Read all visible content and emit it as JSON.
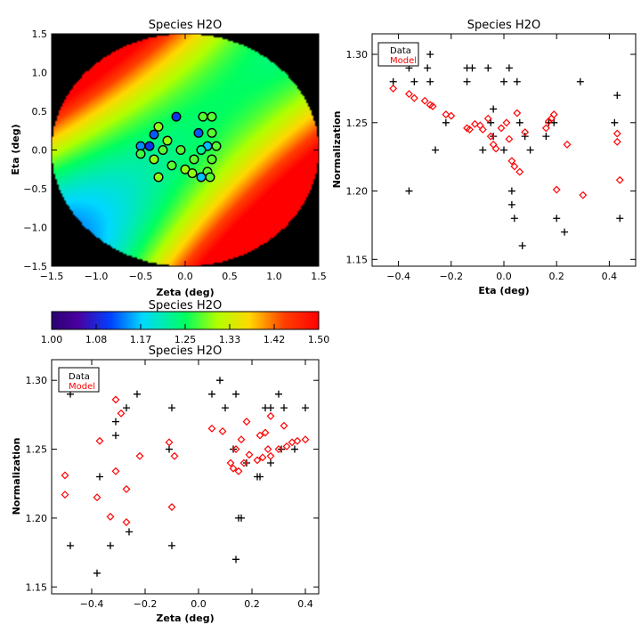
{
  "chart_data": [
    {
      "id": "map",
      "type": "heatmap",
      "title": "Species H2O",
      "xlabel": "Zeta (deg)",
      "ylabel": "Eta (deg)",
      "xlim": [
        -1.5,
        1.5
      ],
      "ylim": [
        -1.5,
        1.5
      ],
      "xticks": [
        "−1.5",
        "−1.0",
        "−0.5",
        "0.0",
        "0.5",
        "1.0",
        "1.5"
      ],
      "yticks": [
        "−1.5",
        "−1.0",
        "−0.5",
        "0.0",
        "0.5",
        "1.0",
        "1.5"
      ],
      "field": {
        "center_value": 1.24,
        "grad_zeta": 0.06,
        "grad_eta": -0.015,
        "curv_zeta": 0.08,
        "curv_eta": 0.08,
        "cross": -0.2
      },
      "points": [
        {
          "x": -0.1,
          "y": 0.43,
          "v": 1.1
        },
        {
          "x": 0.2,
          "y": 0.43,
          "v": 1.28
        },
        {
          "x": 0.3,
          "y": 0.43,
          "v": 1.28
        },
        {
          "x": -0.3,
          "y": 0.3,
          "v": 1.3
        },
        {
          "x": -0.35,
          "y": 0.2,
          "v": 1.12
        },
        {
          "x": 0.15,
          "y": 0.22,
          "v": 1.12
        },
        {
          "x": -0.2,
          "y": 0.12,
          "v": 1.3
        },
        {
          "x": 0.25,
          "y": 0.05,
          "v": 1.16
        },
        {
          "x": 0.35,
          "y": 0.05,
          "v": 1.28
        },
        {
          "x": -0.5,
          "y": 0.05,
          "v": 1.14
        },
        {
          "x": -0.4,
          "y": 0.05,
          "v": 1.1
        },
        {
          "x": 0.18,
          "y": 0.0,
          "v": 1.22
        },
        {
          "x": -0.25,
          "y": 0.0,
          "v": 1.28
        },
        {
          "x": -0.5,
          "y": -0.05,
          "v": 1.27
        },
        {
          "x": 0.1,
          "y": -0.12,
          "v": 1.28
        },
        {
          "x": -0.35,
          "y": -0.12,
          "v": 1.3
        },
        {
          "x": 0.3,
          "y": -0.12,
          "v": 1.28
        },
        {
          "x": -0.15,
          "y": -0.2,
          "v": 1.28
        },
        {
          "x": 0.0,
          "y": -0.25,
          "v": 1.3
        },
        {
          "x": 0.25,
          "y": -0.28,
          "v": 1.28
        },
        {
          "x": -0.3,
          "y": -0.35,
          "v": 1.3
        },
        {
          "x": 0.28,
          "y": -0.35,
          "v": 1.28
        },
        {
          "x": 0.08,
          "y": -0.3,
          "v": 1.3
        },
        {
          "x": 0.18,
          "y": -0.35,
          "v": 1.16
        },
        {
          "x": 0.3,
          "y": 0.22,
          "v": 1.28
        },
        {
          "x": -0.05,
          "y": 0.0,
          "v": 1.28
        }
      ]
    },
    {
      "id": "colorbar",
      "type": "colorbar",
      "title": "Species H2O",
      "range": [
        1.0,
        1.5
      ],
      "ticks": [
        "1.00",
        "1.08",
        "1.17",
        "1.25",
        "1.33",
        "1.42",
        "1.50"
      ]
    },
    {
      "id": "eta",
      "type": "scatter",
      "title": "Species H2O",
      "xlabel": "Eta (deg)",
      "ylabel": "Normalization",
      "xlim": [
        -0.5,
        0.5
      ],
      "ylim": [
        1.145,
        1.315
      ],
      "xticks": [
        "−0.4",
        "−0.2",
        "0.0",
        "0.2",
        "0.4"
      ],
      "yticks": [
        "1.15",
        "1.20",
        "1.25",
        "1.30"
      ],
      "legend": [
        "Data",
        "Model"
      ],
      "series": [
        {
          "name": "Data",
          "marker": "plus",
          "color": "#000000",
          "points": [
            [
              -0.42,
              1.28
            ],
            [
              -0.36,
              1.29
            ],
            [
              -0.36,
              1.2
            ],
            [
              -0.34,
              1.28
            ],
            [
              -0.29,
              1.29
            ],
            [
              -0.28,
              1.3
            ],
            [
              -0.28,
              1.28
            ],
            [
              -0.26,
              1.23
            ],
            [
              -0.22,
              1.25
            ],
            [
              -0.14,
              1.28
            ],
            [
              -0.14,
              1.29
            ],
            [
              -0.12,
              1.29
            ],
            [
              -0.08,
              1.23
            ],
            [
              -0.06,
              1.29
            ],
            [
              -0.05,
              1.25
            ],
            [
              -0.04,
              1.26
            ],
            [
              -0.04,
              1.24
            ],
            [
              0.0,
              1.23
            ],
            [
              0.0,
              1.28
            ],
            [
              0.02,
              1.29
            ],
            [
              0.03,
              1.2
            ],
            [
              0.03,
              1.19
            ],
            [
              0.04,
              1.18
            ],
            [
              0.05,
              1.28
            ],
            [
              0.06,
              1.25
            ],
            [
              0.07,
              1.16
            ],
            [
              0.08,
              1.24
            ],
            [
              0.1,
              1.23
            ],
            [
              0.16,
              1.24
            ],
            [
              0.17,
              1.25
            ],
            [
              0.19,
              1.25
            ],
            [
              0.2,
              1.18
            ],
            [
              0.23,
              1.17
            ],
            [
              0.29,
              1.28
            ],
            [
              0.42,
              1.25
            ],
            [
              0.43,
              1.27
            ],
            [
              0.44,
              1.18
            ]
          ]
        },
        {
          "name": "Model",
          "marker": "diamond",
          "color": "#ff0000",
          "points": [
            [
              -0.42,
              1.275
            ],
            [
              -0.36,
              1.271
            ],
            [
              -0.34,
              1.268
            ],
            [
              -0.3,
              1.266
            ],
            [
              -0.28,
              1.263
            ],
            [
              -0.27,
              1.262
            ],
            [
              -0.22,
              1.256
            ],
            [
              -0.2,
              1.255
            ],
            [
              -0.14,
              1.246
            ],
            [
              -0.13,
              1.245
            ],
            [
              -0.11,
              1.249
            ],
            [
              -0.09,
              1.248
            ],
            [
              -0.08,
              1.245
            ],
            [
              -0.06,
              1.253
            ],
            [
              -0.05,
              1.24
            ],
            [
              -0.04,
              1.234
            ],
            [
              -0.03,
              1.231
            ],
            [
              -0.01,
              1.246
            ],
            [
              0.01,
              1.25
            ],
            [
              0.02,
              1.238
            ],
            [
              0.03,
              1.222
            ],
            [
              0.04,
              1.218
            ],
            [
              0.05,
              1.257
            ],
            [
              0.06,
              1.214
            ],
            [
              0.08,
              1.243
            ],
            [
              0.16,
              1.246
            ],
            [
              0.17,
              1.251
            ],
            [
              0.18,
              1.253
            ],
            [
              0.19,
              1.256
            ],
            [
              0.2,
              1.201
            ],
            [
              0.24,
              1.234
            ],
            [
              0.3,
              1.197
            ],
            [
              0.43,
              1.236
            ],
            [
              0.43,
              1.242
            ],
            [
              0.44,
              1.208
            ]
          ]
        }
      ]
    },
    {
      "id": "zeta",
      "type": "scatter",
      "title": "Species H2O",
      "xlabel": "Zeta (deg)",
      "ylabel": "Normalization",
      "xlim": [
        -0.55,
        0.45
      ],
      "ylim": [
        1.145,
        1.315
      ],
      "xticks": [
        "−0.4",
        "−0.2",
        "0.0",
        "0.2",
        "0.4"
      ],
      "yticks": [
        "1.15",
        "1.20",
        "1.25",
        "1.30"
      ],
      "legend": [
        "Data",
        "Model"
      ],
      "series": [
        {
          "name": "Data",
          "marker": "plus",
          "color": "#000000",
          "points": [
            [
              -0.48,
              1.29
            ],
            [
              -0.48,
              1.18
            ],
            [
              -0.37,
              1.23
            ],
            [
              -0.38,
              1.16
            ],
            [
              -0.33,
              1.18
            ],
            [
              -0.31,
              1.27
            ],
            [
              -0.31,
              1.26
            ],
            [
              -0.27,
              1.28
            ],
            [
              -0.26,
              1.19
            ],
            [
              -0.23,
              1.29
            ],
            [
              -0.11,
              1.25
            ],
            [
              -0.1,
              1.28
            ],
            [
              -0.1,
              1.18
            ],
            [
              0.05,
              1.29
            ],
            [
              0.08,
              1.3
            ],
            [
              0.1,
              1.28
            ],
            [
              0.13,
              1.25
            ],
            [
              0.14,
              1.29
            ],
            [
              0.14,
              1.17
            ],
            [
              0.15,
              1.2
            ],
            [
              0.16,
              1.2
            ],
            [
              0.18,
              1.24
            ],
            [
              0.22,
              1.23
            ],
            [
              0.23,
              1.23
            ],
            [
              0.25,
              1.28
            ],
            [
              0.27,
              1.28
            ],
            [
              0.27,
              1.24
            ],
            [
              0.3,
              1.29
            ],
            [
              0.31,
              1.25
            ],
            [
              0.32,
              1.28
            ],
            [
              0.36,
              1.25
            ],
            [
              0.4,
              1.28
            ]
          ]
        },
        {
          "name": "Model",
          "marker": "diamond",
          "color": "#ff0000",
          "points": [
            [
              -0.5,
              1.231
            ],
            [
              -0.5,
              1.217
            ],
            [
              -0.38,
              1.215
            ],
            [
              -0.37,
              1.256
            ],
            [
              -0.33,
              1.201
            ],
            [
              -0.31,
              1.286
            ],
            [
              -0.31,
              1.234
            ],
            [
              -0.29,
              1.276
            ],
            [
              -0.27,
              1.197
            ],
            [
              -0.27,
              1.221
            ],
            [
              -0.22,
              1.245
            ],
            [
              -0.11,
              1.255
            ],
            [
              -0.1,
              1.208
            ],
            [
              -0.09,
              1.245
            ],
            [
              0.05,
              1.265
            ],
            [
              0.09,
              1.263
            ],
            [
              0.12,
              1.24
            ],
            [
              0.13,
              1.236
            ],
            [
              0.14,
              1.25
            ],
            [
              0.15,
              1.234
            ],
            [
              0.16,
              1.257
            ],
            [
              0.17,
              1.24
            ],
            [
              0.18,
              1.27
            ],
            [
              0.19,
              1.246
            ],
            [
              0.22,
              1.242
            ],
            [
              0.23,
              1.26
            ],
            [
              0.24,
              1.244
            ],
            [
              0.25,
              1.262
            ],
            [
              0.26,
              1.25
            ],
            [
              0.27,
              1.274
            ],
            [
              0.27,
              1.245
            ],
            [
              0.3,
              1.25
            ],
            [
              0.32,
              1.267
            ],
            [
              0.33,
              1.252
            ],
            [
              0.35,
              1.255
            ],
            [
              0.37,
              1.256
            ],
            [
              0.4,
              1.257
            ]
          ]
        }
      ]
    }
  ]
}
